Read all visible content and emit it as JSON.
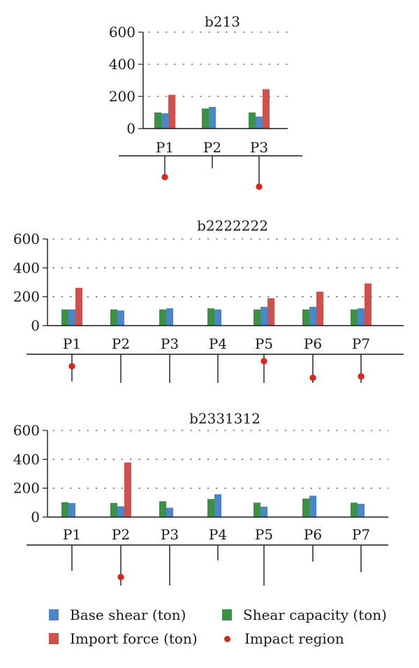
{
  "colors": {
    "base_shear": "#4a86c8",
    "shear_capacity": "#3d9144",
    "import_force": "#d0504c",
    "impact_region": "#d6281e"
  },
  "legend": {
    "base_shear": "Base shear (ton)",
    "shear_capacity": "Shear capacity (ton)",
    "import_force": "Import force (ton)",
    "impact_region": "Impact region"
  },
  "chart_data": [
    {
      "type": "bar",
      "title": "b213",
      "categories": [
        "P1",
        "P2",
        "P3"
      ],
      "ylim": [
        0,
        600
      ],
      "yticks": [
        0,
        200,
        400,
        600
      ],
      "grid": true,
      "series": [
        {
          "name": "Shear capacity (ton)",
          "values": [
            100,
            125,
            100
          ]
        },
        {
          "name": "Base shear (ton)",
          "values": [
            95,
            135,
            75
          ]
        },
        {
          "name": "Import force (ton)",
          "values": [
            210,
            0,
            245
          ]
        }
      ],
      "piles": [
        {
          "length": 0.72,
          "impact": 0.88
        },
        {
          "length": 0.37,
          "impact": null
        },
        {
          "length": 1.0,
          "impact": 0.92
        }
      ]
    },
    {
      "type": "bar",
      "title": "b2222222",
      "categories": [
        "P1",
        "P2",
        "P3",
        "P4",
        "P5",
        "P6",
        "P7"
      ],
      "ylim": [
        0,
        600
      ],
      "yticks": [
        0,
        200,
        400,
        600
      ],
      "grid": true,
      "series": [
        {
          "name": "Shear capacity (ton)",
          "values": [
            112,
            112,
            112,
            120,
            112,
            112,
            112
          ]
        },
        {
          "name": "Base shear (ton)",
          "values": [
            112,
            105,
            120,
            112,
            130,
            130,
            120
          ]
        },
        {
          "name": "Import force (ton)",
          "values": [
            262,
            0,
            0,
            0,
            190,
            235,
            292
          ]
        }
      ],
      "piles": [
        {
          "length": 0.95,
          "impact": 0.44
        },
        {
          "length": 1.0,
          "impact": null
        },
        {
          "length": 1.0,
          "impact": null
        },
        {
          "length": 1.0,
          "impact": null
        },
        {
          "length": 1.0,
          "impact": 0.24
        },
        {
          "length": 1.0,
          "impact": 0.82
        },
        {
          "length": 1.0,
          "impact": 0.77
        }
      ]
    },
    {
      "type": "bar",
      "title": "b2331312",
      "categories": [
        "P1",
        "P2",
        "P3",
        "P4",
        "P5",
        "P6",
        "P7"
      ],
      "ylim": [
        0,
        600
      ],
      "yticks": [
        0,
        200,
        400,
        600
      ],
      "grid": true,
      "series": [
        {
          "name": "Shear capacity (ton)",
          "values": [
            103,
            98,
            110,
            125,
            100,
            128,
            100
          ]
        },
        {
          "name": "Base shear (ton)",
          "values": [
            97,
            75,
            65,
            158,
            72,
            148,
            92
          ]
        },
        {
          "name": "Import force (ton)",
          "values": [
            0,
            378,
            0,
            0,
            0,
            0,
            0
          ]
        }
      ],
      "piles": [
        {
          "length": 0.64,
          "impact": null
        },
        {
          "length": 1.0,
          "impact": 0.79
        },
        {
          "length": 1.0,
          "impact": null
        },
        {
          "length": 0.38,
          "impact": null
        },
        {
          "length": 1.0,
          "impact": null
        },
        {
          "length": 0.41,
          "impact": null
        },
        {
          "length": 0.67,
          "impact": null
        }
      ]
    }
  ]
}
